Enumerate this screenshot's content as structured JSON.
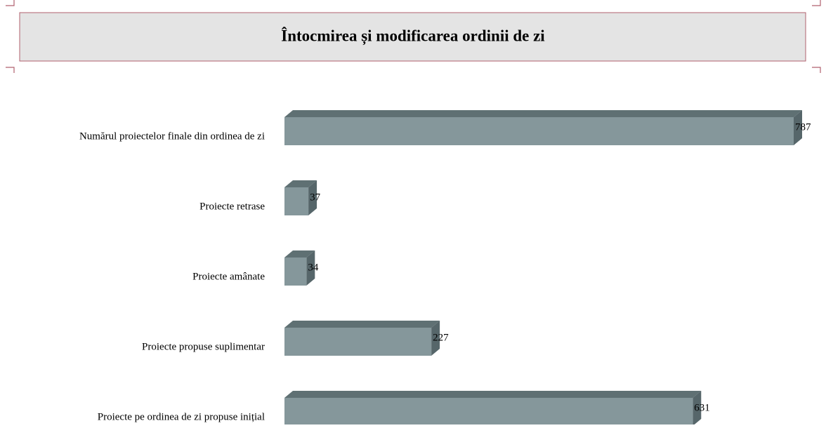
{
  "chart_data": {
    "type": "bar",
    "orientation": "horizontal",
    "title": "Întocmirea și modificarea ordinii de zi",
    "categories": [
      "Numărul proiectelor finale din ordinea de zi",
      "Proiecte retrase",
      "Proiecte amânate",
      "Proiecte propuse suplimentar",
      "Proiecte pe ordinea de zi propuse inițial"
    ],
    "values": [
      787,
      37,
      34,
      227,
      631
    ],
    "color": "#85979b"
  }
}
